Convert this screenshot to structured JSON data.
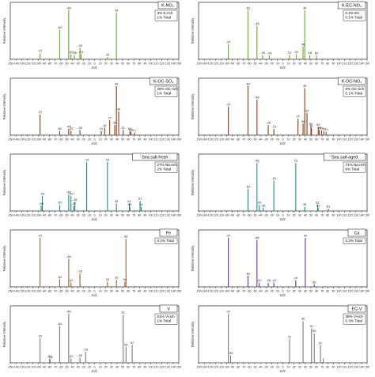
{
  "figure": {
    "xlabel": "m/z",
    "ylabel": "Relative Intensity",
    "xticks": [
      "-150",
      "-140",
      "-130",
      "-120",
      "-110",
      "-100",
      "-90",
      "-80",
      "-70",
      "-60",
      "-50",
      "-40",
      "-30",
      "-20",
      "-10",
      "0",
      "10",
      "20",
      "30",
      "40",
      "50",
      "60",
      "70",
      "80",
      "90",
      "100",
      "110",
      "120",
      "130",
      "140",
      "150"
    ]
  },
  "chart_data": [
    {
      "type": "bar",
      "title": "K-NO₃",
      "box": [
        "3% K-rich",
        "1% Total"
      ],
      "color": "#6aa81f",
      "xlim": [
        -150,
        150
      ],
      "peaks": [
        [
          -97,
          0.12
        ],
        [
          -62,
          0.6
        ],
        [
          -46,
          1.0
        ],
        [
          -42,
          0.1
        ],
        [
          -36,
          0.08
        ],
        [
          -26,
          0.23
        ],
        [
          -24,
          0.1
        ],
        [
          23,
          0.04
        ],
        [
          39,
          0.95
        ]
      ],
      "labels": [
        [
          -97,
          "-97"
        ],
        [
          -62,
          "-62"
        ],
        [
          -46,
          "-46"
        ],
        [
          -42,
          "-42"
        ],
        [
          -36,
          "-36"
        ],
        [
          -26,
          "-26"
        ],
        [
          -24,
          "-24"
        ],
        [
          23,
          "23"
        ],
        [
          39,
          "39"
        ]
      ]
    },
    {
      "type": "bar",
      "title": "K-EC-NO₃",
      "box": [
        "0.2% EC",
        "0.1% Total"
      ],
      "color": "#6aa81f",
      "xlim": [
        -150,
        150
      ],
      "peaks": [
        [
          -97,
          0.3
        ],
        [
          -62,
          1.0
        ],
        [
          -46,
          0.68
        ],
        [
          -36,
          0.08
        ],
        [
          -24,
          0.07
        ],
        [
          12,
          0.08
        ],
        [
          24,
          0.1
        ],
        [
          36,
          0.25
        ],
        [
          39,
          1.0
        ],
        [
          48,
          0.08
        ],
        [
          60,
          0.07
        ]
      ],
      "labels": [
        [
          -97,
          "-97"
        ],
        [
          -62,
          "-62"
        ],
        [
          -46,
          "-46"
        ],
        [
          -36,
          "-36"
        ],
        [
          -24,
          "-24"
        ],
        [
          12,
          "12"
        ],
        [
          24,
          "24"
        ],
        [
          36,
          "36"
        ],
        [
          39,
          "39"
        ],
        [
          48,
          "48"
        ],
        [
          60,
          "60"
        ]
      ]
    },
    {
      "type": "bar",
      "title": "K-OC-SO₄",
      "box": [
        "29% OC-rich",
        "1% Total"
      ],
      "color": "#8b3a10",
      "xlim": [
        -150,
        150
      ],
      "peaks": [
        [
          -97,
          0.42
        ],
        [
          -62,
          0.08
        ],
        [
          -46,
          0.12
        ],
        [
          -42,
          0.08
        ],
        [
          -26,
          0.1
        ],
        [
          12,
          0.08
        ],
        [
          18,
          0.15
        ],
        [
          27,
          0.3
        ],
        [
          36,
          0.2
        ],
        [
          39,
          1.0
        ],
        [
          43,
          0.48
        ],
        [
          51,
          0.1
        ],
        [
          63,
          0.08
        ],
        [
          65,
          0.06
        ],
        [
          71,
          0.04
        ]
      ],
      "labels": [
        [
          -97,
          "-97"
        ],
        [
          -62,
          "-62"
        ],
        [
          -46,
          "-46"
        ],
        [
          -42,
          "-42"
        ],
        [
          -26,
          "-26"
        ],
        [
          12,
          "12"
        ],
        [
          18,
          "18"
        ],
        [
          27,
          "27"
        ],
        [
          36,
          "36"
        ],
        [
          39,
          "39"
        ],
        [
          43,
          "43"
        ],
        [
          51,
          "51"
        ],
        [
          63,
          "63"
        ],
        [
          65,
          "65"
        ],
        [
          71,
          "71"
        ]
      ]
    },
    {
      "type": "bar",
      "title": "K-OC-NO₃",
      "box": [
        "6% OC-rich",
        "0.1% Total"
      ],
      "color": "#8b3a10",
      "xlim": [
        -150,
        150
      ],
      "peaks": [
        [
          -97,
          0.58
        ],
        [
          -62,
          1.0
        ],
        [
          -46,
          0.72
        ],
        [
          -26,
          0.2
        ],
        [
          -16,
          0.12
        ],
        [
          27,
          0.33
        ],
        [
          36,
          0.23
        ],
        [
          39,
          0.96
        ],
        [
          43,
          0.45
        ],
        [
          50,
          0.18
        ],
        [
          51,
          0.14
        ],
        [
          63,
          0.16
        ],
        [
          65,
          0.1
        ],
        [
          69,
          0.09
        ],
        [
          73,
          0.07
        ],
        [
          77,
          0.06
        ]
      ],
      "labels": [
        [
          -97,
          "-97"
        ],
        [
          -62,
          "-62"
        ],
        [
          -46,
          "-46"
        ],
        [
          -26,
          "-26"
        ],
        [
          -16,
          "-16"
        ],
        [
          27,
          "27"
        ],
        [
          36,
          "36"
        ],
        [
          39,
          "39"
        ],
        [
          43,
          "43"
        ],
        [
          50,
          "50"
        ],
        [
          51,
          "51"
        ],
        [
          63,
          "63"
        ],
        [
          65,
          "65"
        ],
        [
          69,
          "69"
        ],
        [
          73,
          "73"
        ],
        [
          77,
          "77"
        ]
      ]
    },
    {
      "type": "bar",
      "title": "Sea salt-fresh",
      "box": [
        "27% Na-rich",
        "2% Total"
      ],
      "color": "#1f8a8a",
      "xlim": [
        -150,
        150
      ],
      "peaks": [
        [
          -93,
          0.3
        ],
        [
          -95,
          0.1
        ],
        [
          -62,
          0.12
        ],
        [
          -46,
          0.33
        ],
        [
          -42,
          0.3
        ],
        [
          -37,
          0.1
        ],
        [
          -35,
          0.18
        ],
        [
          -14,
          1.0
        ],
        [
          23,
          1.0
        ],
        [
          39,
          0.15
        ],
        [
          62,
          0.15
        ],
        [
          63,
          0.08
        ],
        [
          81,
          0.2
        ],
        [
          83,
          0.08
        ]
      ],
      "labels": [
        [
          -93,
          "-93"
        ],
        [
          -95,
          "-95"
        ],
        [
          -62,
          "-62"
        ],
        [
          -46,
          "-46"
        ],
        [
          -42,
          "-42"
        ],
        [
          -37,
          "-37"
        ],
        [
          -35,
          "-35"
        ],
        [
          -14,
          "-14"
        ],
        [
          23,
          "23"
        ],
        [
          39,
          "39"
        ],
        [
          62,
          "62"
        ],
        [
          63,
          "63"
        ],
        [
          81,
          "81"
        ],
        [
          83,
          "83"
        ]
      ]
    },
    {
      "type": "bar",
      "title": "Sea salt-aged",
      "box": [
        "71% Na-rich",
        "6% Total"
      ],
      "color": "#1f8a8a",
      "xlim": [
        -150,
        150
      ],
      "peaks": [
        [
          -62,
          0.45
        ],
        [
          -46,
          0.98
        ],
        [
          -42,
          0.12
        ],
        [
          -35,
          0.06
        ],
        [
          -16,
          0.62
        ],
        [
          23,
          0.98
        ],
        [
          39,
          0.08
        ],
        [
          62,
          0.12
        ],
        [
          63,
          0.06
        ],
        [
          81,
          0.04
        ]
      ],
      "labels": [
        [
          -62,
          "-62"
        ],
        [
          -46,
          "-46"
        ],
        [
          -42,
          "-42"
        ],
        [
          -35,
          "-35"
        ],
        [
          -16,
          "-16"
        ],
        [
          23,
          "23"
        ],
        [
          39,
          "39"
        ],
        [
          62,
          "62"
        ],
        [
          63,
          "63"
        ],
        [
          81,
          "81"
        ]
      ]
    },
    {
      "type": "bar",
      "title": "Fe",
      "box": [
        "0.2% Total"
      ],
      "color": "#a0641e",
      "xlim": [
        -150,
        150
      ],
      "peaks": [
        [
          -97,
          1.0
        ],
        [
          -62,
          0.15
        ],
        [
          -46,
          0.57
        ],
        [
          -42,
          0.08
        ],
        [
          -26,
          0.27
        ],
        [
          23,
          0.1
        ],
        [
          39,
          0.14
        ],
        [
          54,
          0.1
        ],
        [
          56,
          0.98
        ]
      ],
      "labels": [
        [
          -97,
          "-97"
        ],
        [
          -62,
          "-62"
        ],
        [
          -46,
          "-46"
        ],
        [
          -42,
          "-42"
        ],
        [
          -26,
          "-26"
        ],
        [
          23,
          "23"
        ],
        [
          39,
          "39"
        ],
        [
          54,
          "54"
        ],
        [
          56,
          "56"
        ]
      ]
    },
    {
      "type": "bar",
      "title": "Ca",
      "box": [
        "0.2% Total"
      ],
      "color": "#6a2c9a",
      "xlim": [
        -150,
        150
      ],
      "peaks": [
        [
          -97,
          1.0
        ],
        [
          -62,
          0.22
        ],
        [
          -46,
          0.96
        ],
        [
          -42,
          0.08
        ],
        [
          -26,
          0.08
        ],
        [
          -16,
          0.08
        ],
        [
          23,
          0.13
        ],
        [
          40,
          1.0
        ],
        [
          56,
          0.04
        ]
      ],
      "labels": [
        [
          -97,
          "-97"
        ],
        [
          -62,
          "-62"
        ],
        [
          -46,
          "-46"
        ],
        [
          -42,
          "-42"
        ],
        [
          -26,
          "-26"
        ],
        [
          -16,
          "-16"
        ],
        [
          23,
          "23"
        ],
        [
          40,
          "40"
        ],
        [
          56,
          "56"
        ]
      ]
    },
    {
      "type": "bar",
      "title": "V",
      "box": [
        "61% V-rich",
        "1% Total"
      ],
      "color": "#7a7a7a",
      "xlim": [
        -150,
        150
      ],
      "peaks": [
        [
          -97,
          0.5
        ],
        [
          -80,
          0.08
        ],
        [
          -79,
          0.06
        ],
        [
          -62,
          0.75
        ],
        [
          -46,
          1.0
        ],
        [
          -42,
          0.08
        ],
        [
          -26,
          0.1
        ],
        [
          -16,
          0.22
        ],
        [
          51,
          0.98
        ],
        [
          56,
          0.32
        ],
        [
          67,
          0.36
        ]
      ],
      "labels": [
        [
          -97,
          "-97"
        ],
        [
          -80,
          "-80"
        ],
        [
          -79,
          "-79"
        ],
        [
          -62,
          "-62"
        ],
        [
          -46,
          "-46"
        ],
        [
          -42,
          "-42"
        ],
        [
          -26,
          "-26"
        ],
        [
          -16,
          "-16"
        ],
        [
          51,
          "51"
        ],
        [
          56,
          "56"
        ],
        [
          67,
          "67"
        ]
      ]
    },
    {
      "type": "bar",
      "title": "EC-V",
      "box": [
        "39% V-rich",
        "0.3% Total"
      ],
      "color": "#7a7a7a",
      "xlim": [
        -150,
        150
      ],
      "peaks": [
        [
          -97,
          1.0
        ],
        [
          -93,
          0.15
        ],
        [
          12,
          0.48
        ],
        [
          36,
          0.85
        ],
        [
          51,
          0.7
        ],
        [
          56,
          0.6
        ],
        [
          67,
          0.35
        ],
        [
          72,
          0.08
        ]
      ],
      "labels": [
        [
          -97,
          "-97"
        ],
        [
          -93,
          "-93"
        ],
        [
          12,
          "12"
        ],
        [
          36,
          "36"
        ],
        [
          51,
          "51"
        ],
        [
          56,
          "56"
        ],
        [
          67,
          "67"
        ]
      ]
    }
  ]
}
